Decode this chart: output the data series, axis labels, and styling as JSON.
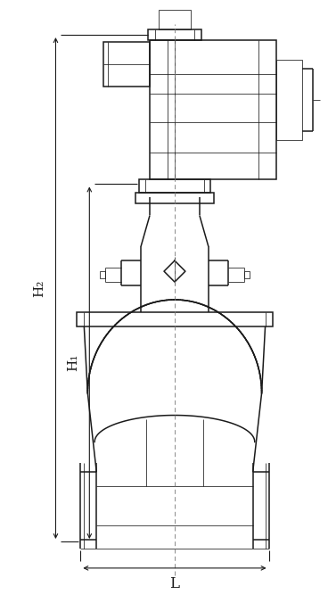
{
  "bg_color": "#ffffff",
  "line_color": "#1a1a1a",
  "fig_width": 3.68,
  "fig_height": 6.76,
  "dpi": 100,
  "labels": {
    "H1": "H₁",
    "H2": "H₂",
    "L": "L"
  }
}
